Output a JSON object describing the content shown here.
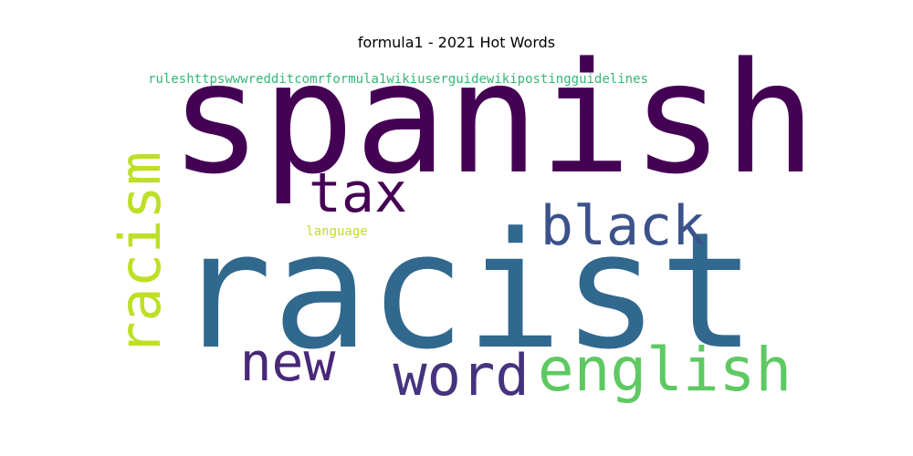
{
  "chart_data": {
    "type": "wordcloud",
    "title": "formula1 - 2021 Hot Words",
    "words": [
      {
        "text": "spanish",
        "weight": 1.0,
        "color": "#440154"
      },
      {
        "text": "racist",
        "weight": 0.97,
        "color": "#31688e"
      },
      {
        "text": "black",
        "weight": 0.33,
        "color": "#3b528b"
      },
      {
        "text": "tax",
        "weight": 0.32,
        "color": "#440154"
      },
      {
        "text": "racism",
        "weight": 0.34,
        "color": "#bddf26"
      },
      {
        "text": "new",
        "weight": 0.32,
        "color": "#482878"
      },
      {
        "text": "word",
        "weight": 0.34,
        "color": "#46337e"
      },
      {
        "text": "english",
        "weight": 0.36,
        "color": "#5ec962"
      },
      {
        "text": "rulesht tpswwwredditcomrformula1wikiuserguidewikipostingguidelines",
        "weight": 0.09,
        "color": "#35b779"
      },
      {
        "text": "language",
        "weight": 0.08,
        "color": "#bddf26"
      }
    ]
  }
}
